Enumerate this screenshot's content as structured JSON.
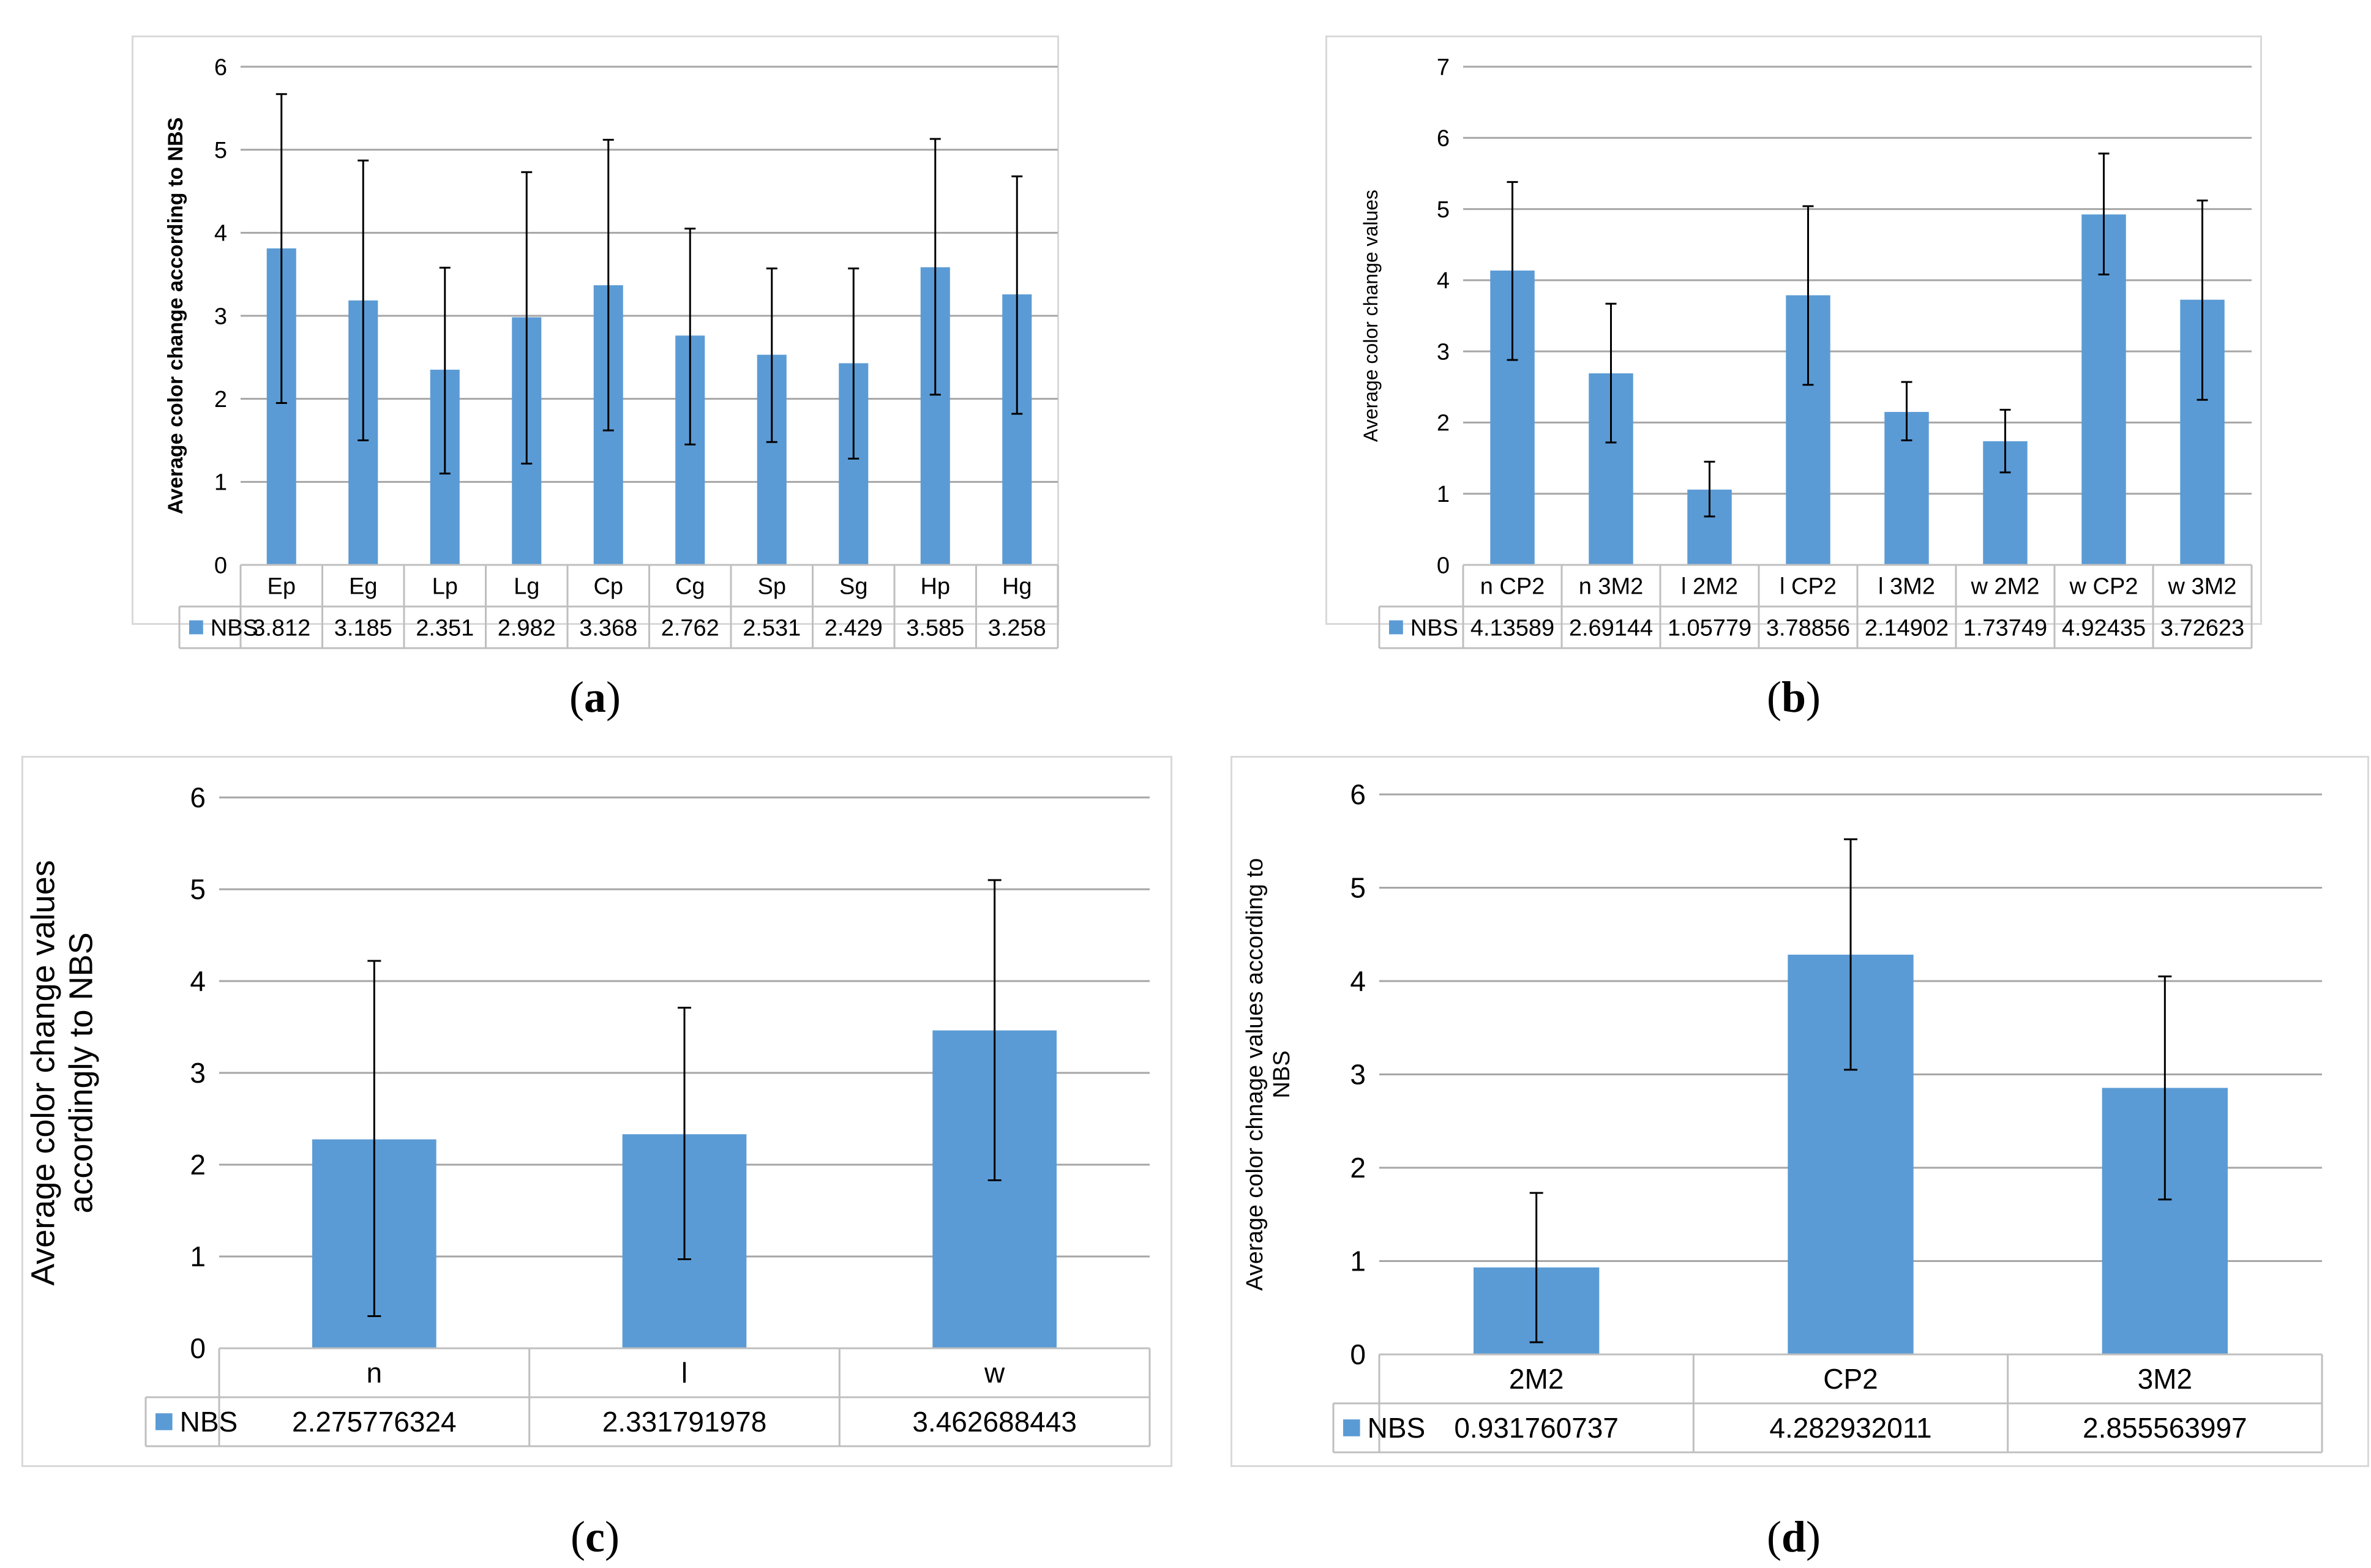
{
  "colors": {
    "bar": "#5b9bd5",
    "grid": "#a6a6a6",
    "axis_text": "#000000",
    "error": "#000000"
  },
  "legend_label": "NBS",
  "captions": [
    {
      "open": "(",
      "letter": "a",
      "close": ")"
    },
    {
      "open": "(",
      "letter": "b",
      "close": ")"
    },
    {
      "open": "(",
      "letter": "c",
      "close": ")"
    },
    {
      "open": "(",
      "letter": "d",
      "close": ")"
    }
  ],
  "chart_data": [
    {
      "type": "bar",
      "title": "",
      "ylabel": "Average color change according to NBS",
      "ylim": [
        0,
        6
      ],
      "yticks": [
        "0",
        "1",
        "2",
        "3",
        "4",
        "5",
        "6"
      ],
      "categories": [
        "Ep",
        "Eg",
        "Lp",
        "Lg",
        "Cp",
        "Cg",
        "Sp",
        "Sg",
        "Hp",
        "Hg"
      ],
      "series": [
        {
          "name": "NBS",
          "values": [
            3.812,
            3.185,
            2.351,
            2.982,
            3.368,
            2.762,
            2.531,
            2.429,
            3.585,
            3.258
          ],
          "labels": [
            "3.812",
            "3.185",
            "2.351",
            "2.982",
            "3.368",
            "2.762",
            "2.531",
            "2.429",
            "3.585",
            "3.258"
          ]
        }
      ],
      "error_low": [
        1.95,
        1.5,
        1.1,
        1.22,
        1.62,
        1.45,
        1.48,
        1.28,
        2.05,
        1.82
      ],
      "error_high": [
        5.67,
        4.87,
        3.58,
        4.73,
        5.12,
        4.05,
        3.57,
        3.57,
        5.13,
        4.68
      ]
    },
    {
      "type": "bar",
      "title": "",
      "ylabel": "Average  color change  values",
      "ylim": [
        0,
        7
      ],
      "yticks": [
        "0",
        "1",
        "2",
        "3",
        "4",
        "5",
        "6",
        "7"
      ],
      "categories": [
        "n CP2",
        "n 3M2",
        "l 2M2",
        "l CP2",
        "l 3M2",
        "w 2M2",
        "w CP2",
        "w 3M2"
      ],
      "series": [
        {
          "name": "NBS",
          "values": [
            4.13589,
            2.69144,
            1.05779,
            3.78856,
            2.14902,
            1.73749,
            4.92435,
            3.72623
          ],
          "labels": [
            "4.13589",
            "2.69144",
            "1.05779",
            "3.78856",
            "2.14902",
            "1.73749",
            "4.92435",
            "3.72623"
          ]
        }
      ],
      "error_low": [
        2.88,
        1.72,
        0.68,
        2.53,
        1.75,
        1.3,
        4.08,
        2.32
      ],
      "error_high": [
        5.38,
        3.67,
        1.45,
        5.04,
        2.57,
        2.18,
        5.78,
        5.12
      ]
    },
    {
      "type": "bar",
      "title": "",
      "ylabel": [
        "Average color change values",
        "accordingly to NBS"
      ],
      "ylim": [
        0,
        6
      ],
      "yticks": [
        "0",
        "1",
        "2",
        "3",
        "4",
        "5",
        "6"
      ],
      "categories": [
        "n",
        "l",
        "w"
      ],
      "series": [
        {
          "name": "NBS",
          "values": [
            2.275776324,
            2.331791978,
            3.462688443
          ],
          "labels": [
            "2.275776324",
            "2.331791978",
            "3.462688443"
          ]
        }
      ],
      "error_low": [
        0.35,
        0.97,
        1.83
      ],
      "error_high": [
        4.22,
        3.71,
        5.1
      ]
    },
    {
      "type": "bar",
      "title": "",
      "ylabel": [
        "Average color chnage values according to",
        "NBS"
      ],
      "ylim": [
        0,
        6
      ],
      "yticks": [
        "0",
        "1",
        "2",
        "3",
        "4",
        "5",
        "6"
      ],
      "categories": [
        "2M2",
        "CP2",
        "3M2"
      ],
      "series": [
        {
          "name": "NBS",
          "values": [
            0.931760737,
            4.282932011,
            2.855563997
          ],
          "labels": [
            "0.931760737",
            "4.282932011",
            "2.855563997"
          ]
        }
      ],
      "error_low": [
        0.13,
        3.05,
        1.66
      ],
      "error_high": [
        1.73,
        5.52,
        4.05
      ]
    }
  ]
}
